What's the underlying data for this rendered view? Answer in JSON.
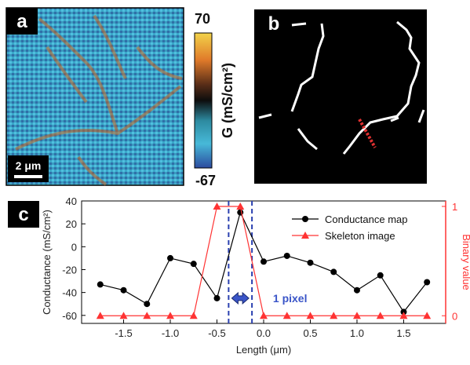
{
  "panels": {
    "a": {
      "label": "a",
      "scalebar_label": "2 μm",
      "colorbar": {
        "max_label": "70",
        "min_label": "-67",
        "unit_label": "G (mS/cm²)",
        "colors": [
          "#f2d34a",
          "#e07a2a",
          "#5a2e18",
          "#0d0d0d",
          "#2d8aa0",
          "#47b9d8",
          "#2c4a9e"
        ]
      }
    },
    "b": {
      "label": "b"
    },
    "c": {
      "label": "c"
    }
  },
  "chart_data": {
    "type": "line",
    "xlabel": "Length (μm)",
    "ylabel": "Conductance (mS/cm²)",
    "y2label": "Binary value",
    "xlim": [
      -1.95,
      1.95
    ],
    "ylim": [
      -67,
      40
    ],
    "y2lim": [
      -0.07,
      1.05
    ],
    "xticks": [
      -1.5,
      -1.0,
      -0.5,
      0.0,
      0.5,
      1.0,
      1.5
    ],
    "xtick_labels": [
      "-1.5",
      "-1.0",
      "-0.5",
      "0.0",
      "0.5",
      "1.0",
      "1.5"
    ],
    "yticks": [
      -60,
      -40,
      -20,
      0,
      20,
      40
    ],
    "ytick_labels": [
      "-60",
      "-40",
      "-20",
      "0",
      "20",
      "40"
    ],
    "y2ticks": [
      0,
      1
    ],
    "y2tick_labels": [
      "0",
      "1"
    ],
    "series": [
      {
        "name": "Conductance map",
        "axis": "left",
        "color": "#000000",
        "marker": "circle",
        "x": [
          -1.75,
          -1.5,
          -1.25,
          -1.0,
          -0.75,
          -0.5,
          -0.25,
          0.0,
          0.25,
          0.5,
          0.75,
          1.0,
          1.25,
          1.5,
          1.75
        ],
        "y": [
          -33,
          -38,
          -50,
          -10,
          -15,
          -45,
          30,
          -13,
          -8,
          -14,
          -22,
          -38,
          -25,
          -57,
          -31
        ]
      },
      {
        "name": "Skeleton image",
        "axis": "right",
        "color": "#ff3333",
        "marker": "triangle",
        "x": [
          -1.75,
          -1.5,
          -1.25,
          -1.0,
          -0.75,
          -0.5,
          -0.25,
          0.0,
          0.25,
          0.5,
          0.75,
          1.0,
          1.25,
          1.5,
          1.75
        ],
        "y": [
          0,
          0,
          0,
          0,
          0,
          1,
          1,
          0,
          0,
          0,
          0,
          0,
          0,
          0,
          0
        ]
      }
    ],
    "vlines": [
      -0.375,
      -0.125
    ],
    "annotation": {
      "text": "1 pixel",
      "x": 0.1
    },
    "legend_position": "top-right"
  }
}
